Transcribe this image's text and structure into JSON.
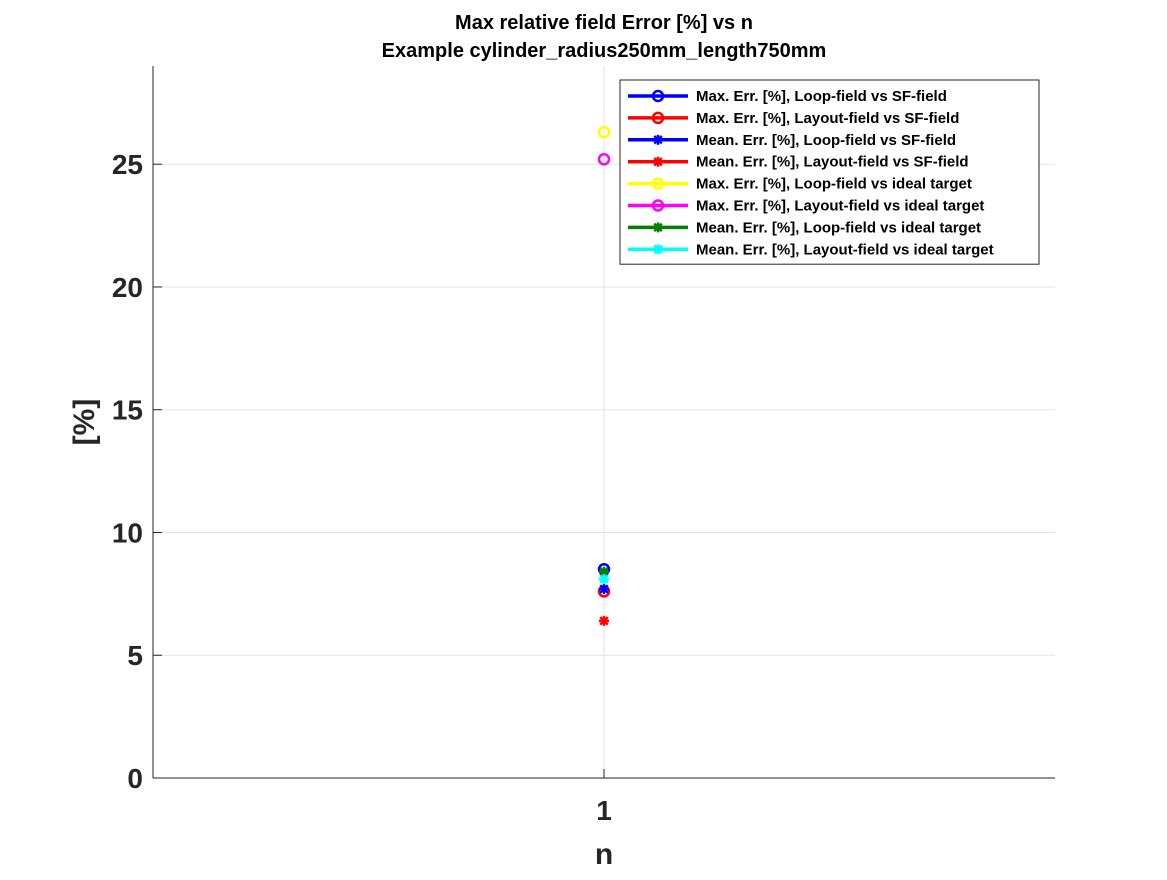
{
  "chart_data": {
    "type": "scatter",
    "title": "Max relative field Error [%] vs n",
    "subtitle": "Example cylinder_radius250mm_length750mm",
    "xlabel": "n",
    "ylabel": "[%]",
    "x_ticks": [
      "1"
    ],
    "y_ticks": [
      "0",
      "5",
      "10",
      "15",
      "20",
      "25"
    ],
    "xlim": [
      0,
      2
    ],
    "ylim": [
      0,
      29
    ],
    "grid": true,
    "legend_position": "top-right",
    "series": [
      {
        "name": "Max. Err. [%], Loop-field vs SF-field",
        "color": "#0000ff",
        "marker": "circle",
        "x": [
          1
        ],
        "y": [
          8.5
        ]
      },
      {
        "name": "Max. Err. [%], Layout-field vs SF-field",
        "color": "#ff0000",
        "marker": "circle",
        "x": [
          1
        ],
        "y": [
          7.6
        ]
      },
      {
        "name": "Mean. Err. [%], Loop-field vs SF-field",
        "color": "#0000ff",
        "marker": "asterisk",
        "x": [
          1
        ],
        "y": [
          7.7
        ]
      },
      {
        "name": "Mean. Err. [%], Layout-field vs SF-field",
        "color": "#ff0000",
        "marker": "asterisk",
        "x": [
          1
        ],
        "y": [
          6.4
        ]
      },
      {
        "name": "Max. Err. [%], Loop-field vs ideal target",
        "color": "#ffff00",
        "marker": "circle",
        "x": [
          1
        ],
        "y": [
          26.3
        ]
      },
      {
        "name": "Max. Err. [%], Layout-field vs ideal target",
        "color": "#ff00ff",
        "marker": "circle",
        "x": [
          1
        ],
        "y": [
          25.2
        ]
      },
      {
        "name": "Mean. Err. [%], Loop-field vs ideal target",
        "color": "#007f00",
        "marker": "asterisk",
        "x": [
          1
        ],
        "y": [
          8.4
        ]
      },
      {
        "name": "Mean. Err. [%], Layout-field vs ideal target",
        "color": "#00ffff",
        "marker": "asterisk",
        "x": [
          1
        ],
        "y": [
          8.1
        ]
      }
    ]
  }
}
